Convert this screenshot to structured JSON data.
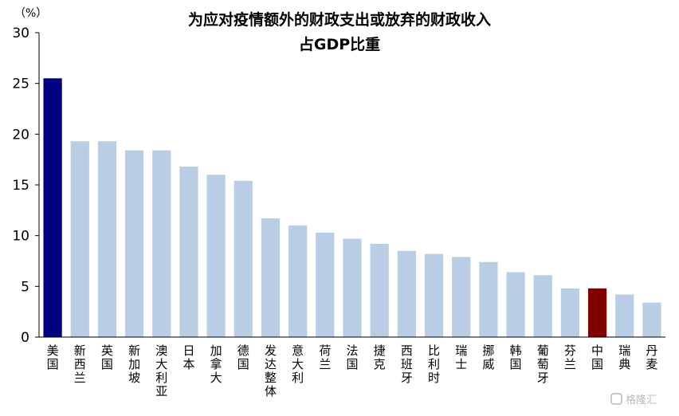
{
  "chart_data": {
    "type": "bar",
    "title": [
      "为应对疫情额外的财政支出或放弃的财政收入",
      "占GDP比重"
    ],
    "ylabel": "（%）",
    "ylim": [
      0,
      30
    ],
    "yticks": [
      0,
      5,
      10,
      15,
      20,
      25,
      30
    ],
    "grid": false,
    "categories": [
      "美国",
      "新西兰",
      "英国",
      "新加坡",
      "澳大利亚",
      "日本",
      "加拿大",
      "德国",
      "发达整体",
      "意大利",
      "荷兰",
      "法国",
      "捷克",
      "西班牙",
      "比利时",
      "瑞士",
      "挪威",
      "韩国",
      "葡萄牙",
      "芬兰",
      "中国",
      "瑞典",
      "丹麦"
    ],
    "values": [
      25.5,
      19.3,
      19.3,
      18.4,
      18.4,
      16.8,
      16.0,
      15.4,
      11.7,
      11.0,
      10.3,
      9.7,
      9.2,
      8.5,
      8.2,
      7.9,
      7.4,
      6.4,
      6.1,
      4.8,
      4.8,
      4.2,
      3.4
    ],
    "colors": {
      "default": "#b9cde5",
      "highlight_us": "#000080",
      "highlight_cn": "#800000"
    },
    "highlights": {
      "美国": "#000080",
      "中国": "#800000"
    }
  },
  "watermark": "格隆汇"
}
